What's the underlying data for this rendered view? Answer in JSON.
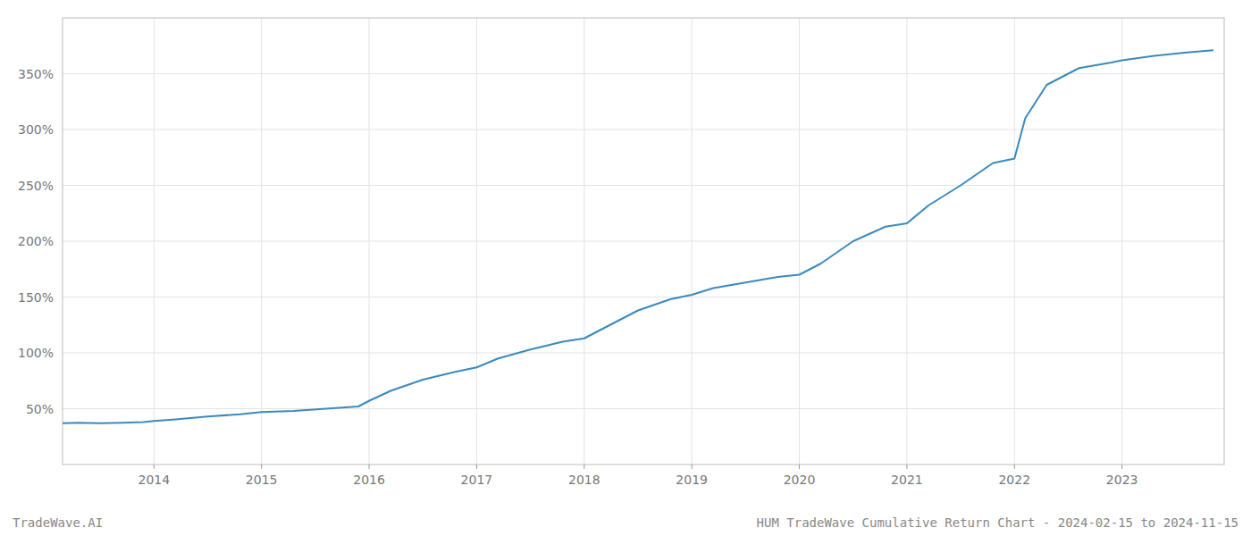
{
  "chart_data": {
    "type": "line",
    "title": "HUM TradeWave Cumulative Return Chart - 2024-02-15 to 2024-11-15",
    "annotations": [
      "TradeWave.AI"
    ],
    "color": "#3a8abf",
    "grid": true,
    "x": [
      2013.15,
      2013.3,
      2013.5,
      2013.7,
      2013.9,
      2014.0,
      2014.2,
      2014.5,
      2014.8,
      2015.0,
      2015.3,
      2015.6,
      2015.9,
      2016.0,
      2016.2,
      2016.5,
      2016.8,
      2017.0,
      2017.2,
      2017.5,
      2017.8,
      2018.0,
      2018.2,
      2018.5,
      2018.8,
      2019.0,
      2019.2,
      2019.5,
      2019.8,
      2020.0,
      2020.2,
      2020.5,
      2020.8,
      2021.0,
      2021.2,
      2021.5,
      2021.8,
      2022.0,
      2022.1,
      2022.3,
      2022.6,
      2022.9,
      2023.0,
      2023.3,
      2023.6,
      2023.85
    ],
    "values": [
      37,
      37.5,
      37,
      37.5,
      38,
      39,
      40.5,
      43,
      45,
      47,
      48,
      50,
      52,
      57,
      66,
      76,
      83,
      87,
      95,
      103,
      110,
      113,
      123,
      138,
      148,
      152,
      158,
      163,
      168,
      170,
      180,
      200,
      213,
      216,
      232,
      250,
      270,
      274,
      310,
      340,
      355,
      360,
      362,
      366,
      369,
      371
    ],
    "xlim": [
      2013.15,
      2023.95
    ],
    "xticks": [
      2014,
      2015,
      2016,
      2017,
      2018,
      2019,
      2020,
      2021,
      2022,
      2023
    ],
    "ylim": [
      0,
      400
    ],
    "yticks": [
      {
        "value": 50,
        "label": "50%"
      },
      {
        "value": 100,
        "label": "100%"
      },
      {
        "value": 150,
        "label": "150%"
      },
      {
        "value": 200,
        "label": "200%"
      },
      {
        "value": 250,
        "label": "250%"
      },
      {
        "value": 300,
        "label": "300%"
      },
      {
        "value": 350,
        "label": "350%"
      }
    ]
  }
}
